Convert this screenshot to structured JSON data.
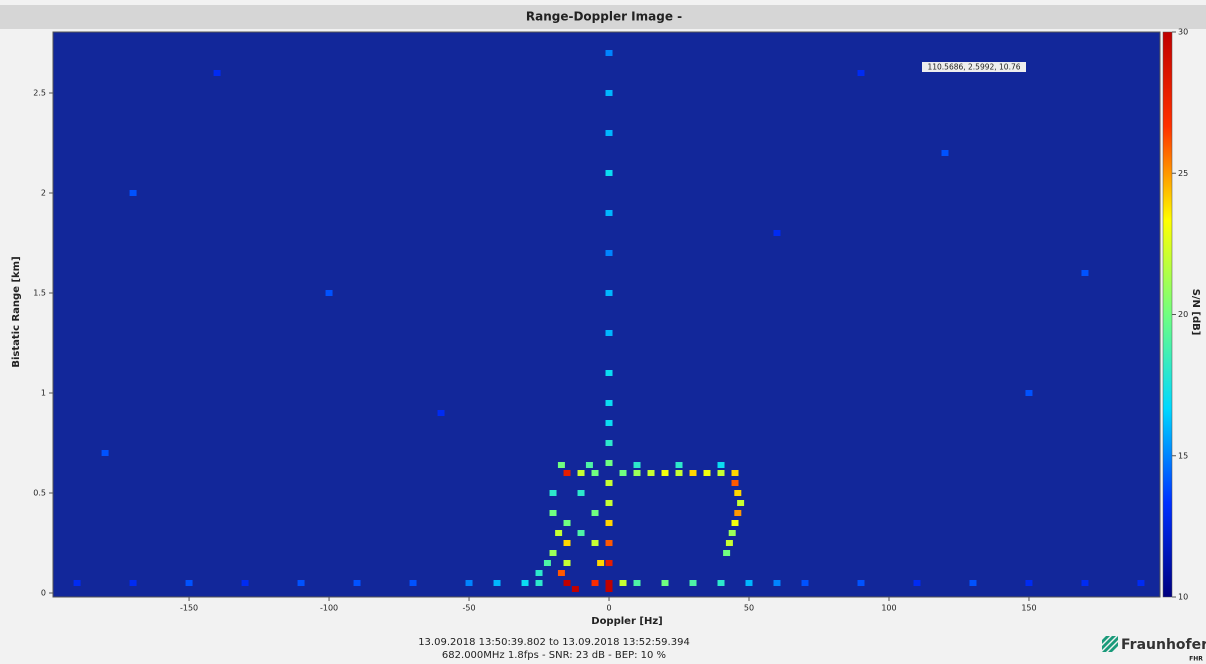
{
  "chart_data": {
    "type": "heatmap",
    "title": "Range-Doppler Image -",
    "xlabel": "Doppler [Hz]",
    "ylabel": "Bistatic Range [km]",
    "colorbar_label": "S/N [dB]",
    "annotation": "110.5686, 2.5992, 10.76",
    "footer": [
      "13.09.2018 13:50:39.802 to 13.09.2018 13:52:59.394",
      "682.000MHz  1.8fps - SNR: 23 dB - BEP: 10 %"
    ],
    "logo": "Fraunhofer",
    "logo_sub": "FHR",
    "xlim": [
      -198.6,
      196.8
    ],
    "xticks": [
      -150,
      -100,
      -50,
      0,
      50,
      100,
      150
    ],
    "ylim": [
      -0.02,
      2.805
    ],
    "yticks": [
      0,
      0.5,
      1,
      1.5,
      2,
      2.5
    ],
    "zlim": [
      10,
      30
    ],
    "zticks": [
      10,
      15,
      20,
      25,
      30
    ],
    "cell_size": [
      2.5,
      0.03
    ],
    "background": "#12279a",
    "colormap": [
      "#00007f",
      "#0030ff",
      "#00d8ff",
      "#70ff80",
      "#ffff00",
      "#ff3000",
      "#c00000"
    ],
    "x": [
      0,
      0,
      0,
      0,
      0,
      0,
      0,
      0,
      0,
      0,
      0,
      0,
      0,
      0,
      0,
      0,
      0,
      0,
      0,
      0,
      -15,
      -12,
      -5,
      -17,
      5,
      -190,
      -170,
      -150,
      -130,
      -110,
      -90,
      -70,
      -50,
      -40,
      -30,
      -25,
      10,
      20,
      30,
      40,
      50,
      60,
      70,
      90,
      110,
      130,
      150,
      170,
      190,
      -15,
      -10,
      -5,
      5,
      10,
      15,
      20,
      25,
      30,
      35,
      40,
      45,
      -17,
      -7,
      10,
      25,
      40,
      45,
      46,
      47,
      46,
      45,
      44,
      43,
      42,
      -20,
      -20,
      -18,
      -20,
      -15,
      -15,
      -15,
      -10,
      -10,
      -5,
      -5,
      -3,
      -22,
      -25,
      -170,
      120,
      -100,
      60,
      150,
      -60,
      90,
      -140,
      170,
      -180
    ],
    "y": [
      2.7,
      2.5,
      2.3,
      2.1,
      1.9,
      1.7,
      1.5,
      1.3,
      1.1,
      0.95,
      0.85,
      0.75,
      0.65,
      0.55,
      0.45,
      0.35,
      0.25,
      0.15,
      0.05,
      0.02,
      0.05,
      0.02,
      0.05,
      0.1,
      0.05,
      0.05,
      0.05,
      0.05,
      0.05,
      0.05,
      0.05,
      0.05,
      0.05,
      0.05,
      0.05,
      0.05,
      0.05,
      0.05,
      0.05,
      0.05,
      0.05,
      0.05,
      0.05,
      0.05,
      0.05,
      0.05,
      0.05,
      0.05,
      0.05,
      0.6,
      0.6,
      0.6,
      0.6,
      0.6,
      0.6,
      0.6,
      0.6,
      0.6,
      0.6,
      0.6,
      0.6,
      0.64,
      0.64,
      0.64,
      0.64,
      0.64,
      0.55,
      0.5,
      0.45,
      0.4,
      0.35,
      0.3,
      0.25,
      0.2,
      0.5,
      0.4,
      0.3,
      0.2,
      0.35,
      0.25,
      0.15,
      0.5,
      0.3,
      0.4,
      0.25,
      0.15,
      0.15,
      0.1,
      2.0,
      2.2,
      1.5,
      1.8,
      1.0,
      0.9,
      2.6,
      2.6,
      1.6,
      0.7
    ],
    "z": [
      15,
      16,
      16,
      17,
      16,
      15,
      16,
      16,
      17,
      17,
      17,
      18,
      20,
      22,
      22,
      24,
      26,
      28,
      30,
      30,
      30,
      30,
      27,
      26,
      22,
      13,
      13,
      14,
      13,
      14,
      14,
      14,
      15,
      16,
      17,
      18,
      19,
      20,
      19,
      18,
      16,
      15,
      14,
      14,
      13,
      14,
      13,
      13,
      13,
      28,
      22,
      20,
      20,
      21,
      22,
      23,
      22,
      24,
      23,
      22,
      24,
      20,
      19,
      18,
      18,
      17,
      26,
      24,
      22,
      25,
      23,
      21,
      22,
      20,
      18,
      20,
      22,
      21,
      20,
      24,
      22,
      18,
      19,
      20,
      22,
      24,
      19,
      18,
      14,
      14,
      14,
      13,
      14,
      13,
      13,
      13,
      14,
      14
    ]
  }
}
